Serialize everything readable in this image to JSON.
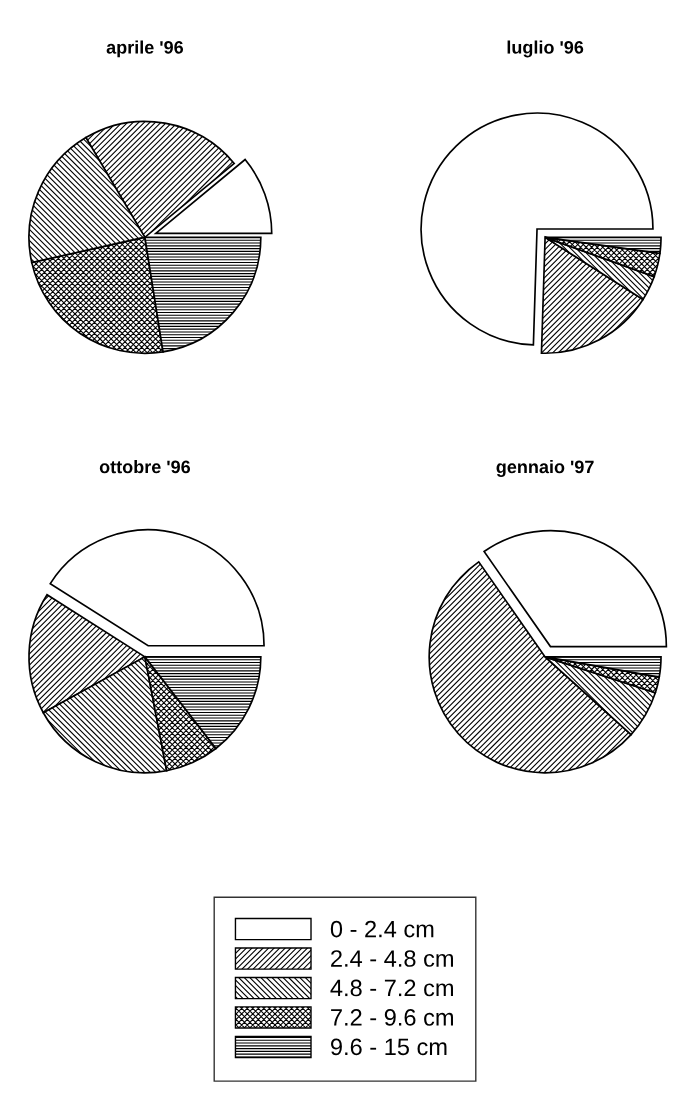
{
  "chart_data": [
    {
      "type": "pie",
      "title": "aprile '96",
      "categories": [
        "0 - 2.4 cm",
        "2.4 - 4.8 cm",
        "4.8 - 7.2 cm",
        "7.2 - 9.6 cm",
        "9.6 - 15 cm"
      ],
      "values": [
        11,
        22.5,
        20,
        24,
        22.5
      ],
      "legend": "bottom"
    },
    {
      "type": "pie",
      "title": "luglio '96",
      "categories": [
        null,
        null,
        null,
        null,
        null
      ],
      "values": [
        74.5,
        16.5,
        3.5,
        3.3,
        2.2
      ]
    },
    {
      "type": "pie",
      "title": "ottobre '96",
      "categories": [
        null,
        null,
        null,
        null,
        null
      ],
      "values": [
        41,
        17,
        20,
        7.5,
        14.5
      ]
    },
    {
      "type": "pie",
      "title": "gennaio '97",
      "categories": [
        null,
        null,
        null,
        null,
        null
      ],
      "values": [
        34.7,
        53.6,
        6.7,
        2.2,
        2.8
      ]
    }
  ]
}
